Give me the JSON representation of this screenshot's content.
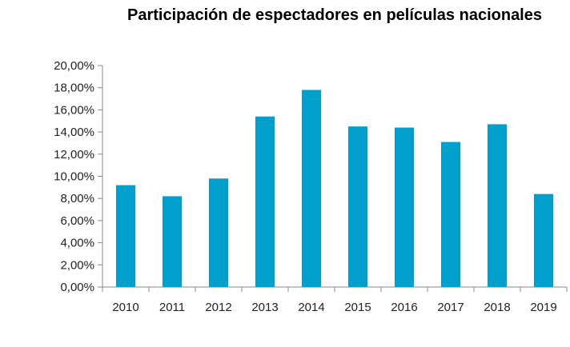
{
  "chart_data": {
    "type": "bar",
    "title": "Participación de espectadores en películas nacionales",
    "xlabel": "",
    "ylabel": "",
    "categories": [
      "2010",
      "2011",
      "2012",
      "2013",
      "2014",
      "2015",
      "2016",
      "2017",
      "2018",
      "2019"
    ],
    "values": [
      9.2,
      8.2,
      9.8,
      15.4,
      17.8,
      14.5,
      14.4,
      13.1,
      14.7,
      8.4
    ],
    "ylim": [
      0,
      20
    ],
    "yticks": [
      "0,00%",
      "2,00%",
      "4,00%",
      "6,00%",
      "8,00%",
      "10,00%",
      "12,00%",
      "14,00%",
      "16,00%",
      "18,00%",
      "20,00%"
    ],
    "bar_color": "#009fcc",
    "grid": false,
    "legend": "none"
  }
}
